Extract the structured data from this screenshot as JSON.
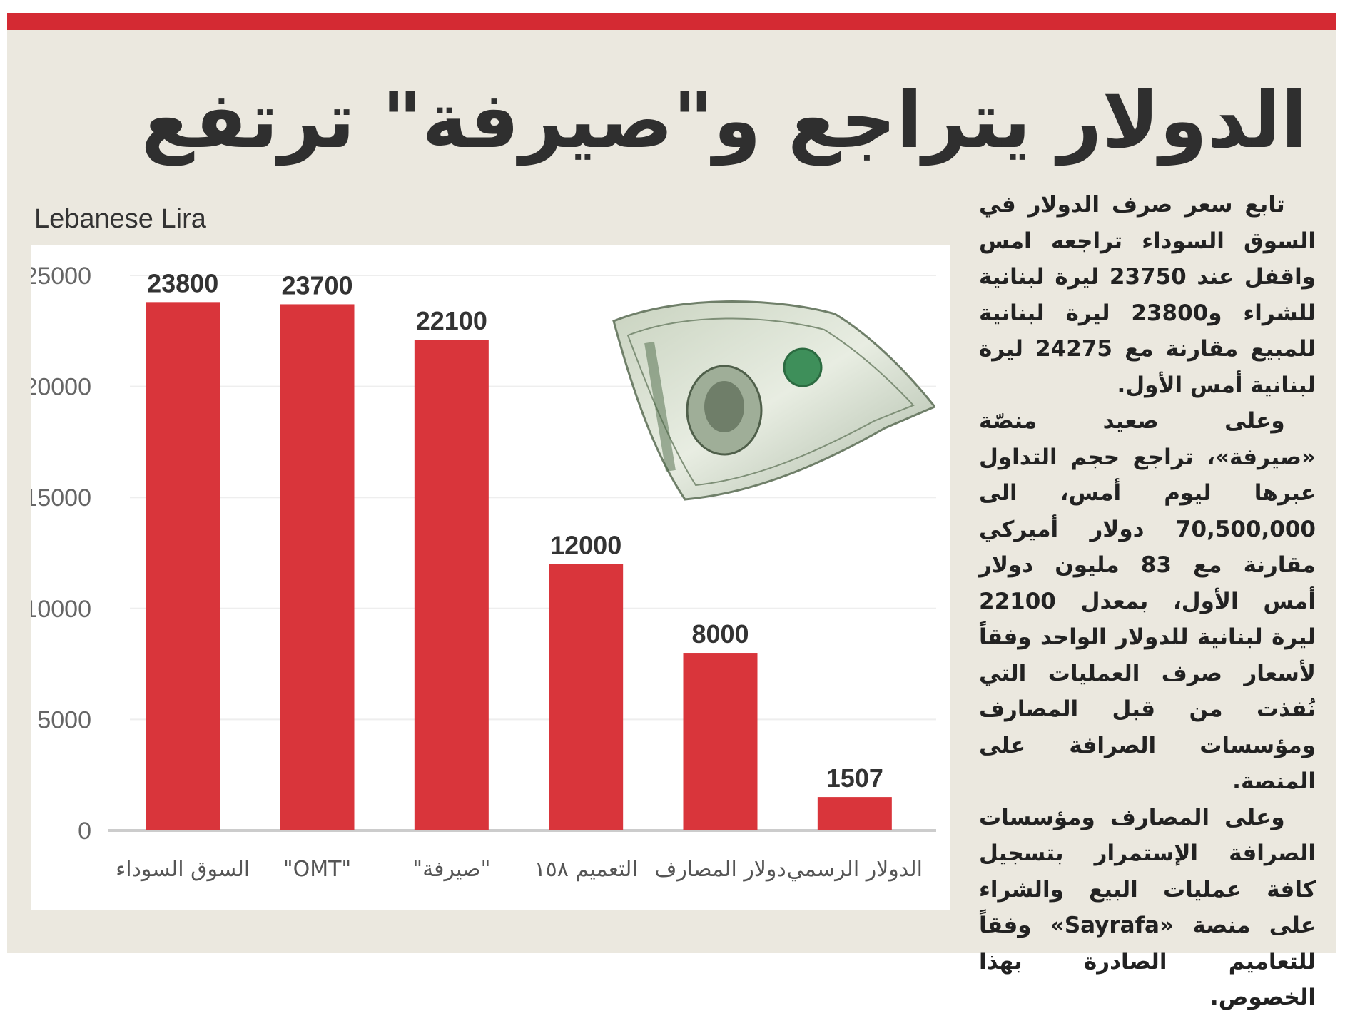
{
  "headline": "الدولار يتراجع و\"صيرفة\" ترتفع",
  "colors": {
    "accent": "#d42a33",
    "bar": "#d9353b",
    "background": "#ebe8df"
  },
  "article": {
    "paragraphs": [
      "تابع سعر صرف الدولار في السوق السوداء تراجعه امس واقفل عند 23750 ليرة لبنانية للشراء و23800 ليرة لبنانية للمبيع مقارنة مع 24275 ليرة لبنانية أمس الأول.",
      "وعلى صعيد منصّة «صيرفة»، تراجع حجم التداول عبرها ليوم أمس، الى 70,500,000 دولار أميركي مقارنة مع 83 مليون دولار أمس الأول، بمعدل 22100 ليرة لبنانية للدولار الواحد وفقاً لأسعار صرف العمليات التي نُفذت من قبل المصارف ومؤسسات الصرافة على المنصة.",
      "وعلى المصارف ومؤسسات الصرافة الإستمرار بتسجيل كافة عمليات البيع والشراء على منصة «Sayrafa» وفقاً للتعاميم الصادرة بهذا الخصوص."
    ]
  },
  "chart_data": {
    "type": "bar",
    "title": "",
    "xlabel": "",
    "ylabel": "Lebanese Lira",
    "ylim": [
      0,
      25000
    ],
    "yticks": [
      0,
      5000,
      10000,
      15000,
      20000,
      25000
    ],
    "grid": true,
    "categories": [
      "السوق السوداء",
      "\"OMT\"",
      "\"صيرفة\"",
      "التعميم ١٥٨",
      "دولار المصارف",
      "الدولار الرسمي"
    ],
    "values": [
      23800,
      23700,
      22100,
      12000,
      8000,
      1507
    ],
    "data_labels": [
      "23800",
      "23700",
      "22100",
      "12000",
      "8000",
      "1507"
    ]
  },
  "illustration": {
    "icon": "dollar-bill-icon"
  }
}
